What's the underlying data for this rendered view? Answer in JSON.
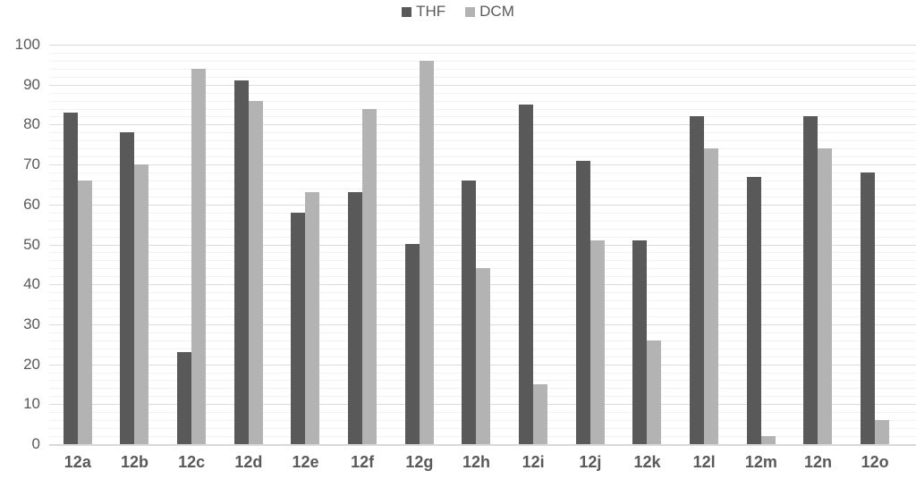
{
  "colors": {
    "thf_bar": "#595959",
    "dcm_bar": "#b3b3b3",
    "axis_text": "#595959",
    "grid_major": "#dcdcdc",
    "grid_minor": "#f2f2f2",
    "baseline": "#d9d9d9",
    "background": "#ffffff"
  },
  "chart_data": {
    "type": "bar",
    "title": "",
    "xlabel": "",
    "ylabel": "",
    "categories": [
      "12a",
      "12b",
      "12c",
      "12d",
      "12e",
      "12f",
      "12g",
      "12h",
      "12i",
      "12j",
      "12k",
      "12l",
      "12m",
      "12n",
      "12o"
    ],
    "series": [
      {
        "name": "THF",
        "color": "#595959",
        "values": [
          83,
          78,
          23,
          91,
          58,
          63,
          50,
          66,
          85,
          71,
          51,
          82,
          67,
          82,
          68
        ]
      },
      {
        "name": "DCM",
        "color": "#b3b3b3",
        "values": [
          66,
          70,
          94,
          86,
          63,
          84,
          96,
          44,
          15,
          51,
          26,
          74,
          2,
          74,
          6
        ]
      }
    ],
    "ylim": [
      0,
      100
    ],
    "yticks": [
      0,
      10,
      20,
      30,
      40,
      50,
      60,
      70,
      80,
      90,
      100
    ],
    "minor_grid_step": 2,
    "grid": true,
    "legend_position": "top-center"
  }
}
